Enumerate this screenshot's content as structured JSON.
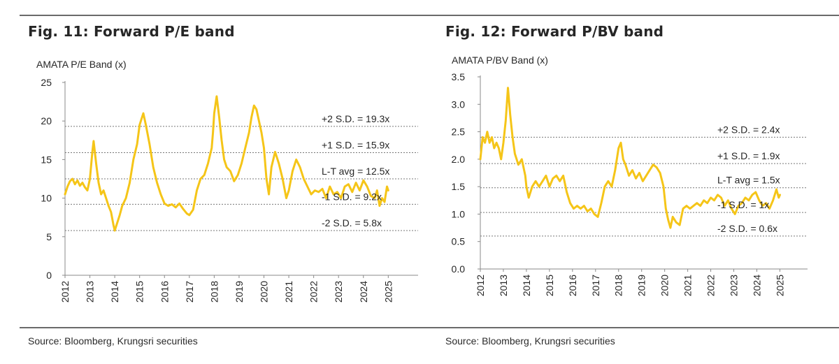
{
  "figures": [
    {
      "title": "Fig. 11: Forward P/E band",
      "source": "Source: Bloomberg, Krungsri securities",
      "chart_data": {
        "type": "line",
        "title": "AMATA P/E  Band (x)",
        "ylim": [
          0,
          25
        ],
        "yticks": [
          "0",
          "5",
          "10",
          "15",
          "20",
          "25"
        ],
        "xlim": [
          2012,
          2026.2
        ],
        "xticks": [
          "2012",
          "2013",
          "2014",
          "2015",
          "2016",
          "2017",
          "2018",
          "2019",
          "2020",
          "2021",
          "2022",
          "2023",
          "2024",
          "2025"
        ],
        "color": "#f5c518",
        "series": [
          {
            "name": "AMATA forward P/E",
            "x": [
              2012.0,
              2012.1,
              2012.2,
              2012.3,
              2012.4,
              2012.5,
              2012.6,
              2012.7,
              2012.8,
              2012.9,
              2013.0,
              2013.05,
              2013.1,
              2013.15,
              2013.25,
              2013.35,
              2013.45,
              2013.55,
              2013.65,
              2013.75,
              2013.85,
              2013.95,
              2014.0,
              2014.1,
              2014.2,
              2014.3,
              2014.45,
              2014.6,
              2014.75,
              2014.9,
              2015.0,
              2015.1,
              2015.15,
              2015.25,
              2015.4,
              2015.55,
              2015.7,
              2015.85,
              2016.0,
              2016.15,
              2016.3,
              2016.45,
              2016.6,
              2016.75,
              2016.9,
              2017.0,
              2017.15,
              2017.3,
              2017.45,
              2017.6,
              2017.75,
              2017.9,
              2017.95,
              2018.0,
              2018.1,
              2018.2,
              2018.3,
              2018.4,
              2018.5,
              2018.65,
              2018.8,
              2018.95,
              2019.1,
              2019.25,
              2019.4,
              2019.5,
              2019.6,
              2019.7,
              2019.8,
              2019.9,
              2020.0,
              2020.1,
              2020.2,
              2020.3,
              2020.45,
              2020.6,
              2020.75,
              2020.9,
              2021.0,
              2021.15,
              2021.3,
              2021.45,
              2021.6,
              2021.75,
              2021.9,
              2022.05,
              2022.2,
              2022.35,
              2022.5,
              2022.65,
              2022.8,
              2022.95,
              2023.1,
              2023.25,
              2023.4,
              2023.55,
              2023.7,
              2023.85,
              2024.0,
              2024.15,
              2024.3,
              2024.45,
              2024.55,
              2024.65,
              2024.75,
              2024.85,
              2024.95,
              2025.0
            ],
            "values": [
              10.5,
              11.5,
              12.2,
              12.5,
              11.8,
              12.3,
              11.6,
              12.0,
              11.4,
              11.0,
              12.5,
              14.2,
              16.0,
              17.4,
              14.5,
              12.0,
              10.5,
              11.0,
              10.0,
              9.0,
              8.2,
              6.5,
              5.8,
              6.8,
              7.8,
              9.0,
              10.0,
              12.0,
              15.0,
              17.0,
              19.5,
              20.5,
              21.0,
              19.5,
              17.0,
              14.0,
              12.0,
              10.5,
              9.3,
              9.0,
              9.2,
              8.8,
              9.3,
              8.6,
              8.0,
              7.8,
              8.5,
              11.0,
              12.5,
              13.0,
              14.5,
              16.5,
              18.5,
              21.0,
              23.2,
              20.5,
              17.5,
              15.0,
              14.0,
              13.5,
              12.2,
              13.0,
              14.5,
              16.5,
              18.5,
              20.5,
              22.0,
              21.5,
              20.0,
              18.5,
              16.5,
              12.5,
              10.5,
              14.0,
              16.0,
              14.5,
              12.5,
              10.0,
              11.0,
              13.5,
              15.0,
              14.0,
              12.5,
              11.5,
              10.5,
              11.0,
              10.8,
              11.2,
              10.0,
              11.5,
              10.5,
              10.8,
              10.0,
              11.5,
              11.8,
              10.8,
              12.0,
              11.0,
              12.3,
              11.5,
              10.3,
              10.0,
              11.0,
              9.0,
              10.0,
              9.5,
              11.5,
              11.0
            ]
          }
        ],
        "bands": [
          {
            "label": "+2 S.D. = 19.3x",
            "value": 19.3
          },
          {
            "label": "+1 S.D.  = 15.9x",
            "value": 15.9
          },
          {
            "label": "L-T avg = 12.5x",
            "value": 12.5
          },
          {
            "label": "-1 S.D.  = 9.2x",
            "value": 9.2
          },
          {
            "label": "-2 S.D.  = 5.8x",
            "value": 5.8
          }
        ]
      }
    },
    {
      "title": "Fig. 12: Forward P/BV band",
      "source": "Source: Bloomberg, Krungsri securities",
      "chart_data": {
        "type": "line",
        "title": "AMATA P/BV Band (x)",
        "ylim": [
          0,
          3.5
        ],
        "yticks": [
          "0.0",
          "0.5",
          "1.0",
          "1.5",
          "2.0",
          "2.5",
          "3.0",
          "3.5"
        ],
        "xlim": [
          2012,
          2026.2
        ],
        "xticks": [
          "2012",
          "2013",
          "2014",
          "2015",
          "2016",
          "2017",
          "2018",
          "2019",
          "2020",
          "2021",
          "2022",
          "2023",
          "2024",
          "2025"
        ],
        "color": "#f5c518",
        "series": [
          {
            "name": "AMATA forward P/BV",
            "x": [
              2012.0,
              2012.1,
              2012.2,
              2012.3,
              2012.4,
              2012.5,
              2012.6,
              2012.7,
              2012.8,
              2012.9,
              2013.0,
              2013.1,
              2013.2,
              2013.3,
              2013.4,
              2013.5,
              2013.65,
              2013.8,
              2013.95,
              2014.0,
              2014.1,
              2014.25,
              2014.4,
              2014.55,
              2014.7,
              2014.85,
              2015.0,
              2015.15,
              2015.3,
              2015.45,
              2015.6,
              2015.75,
              2015.9,
              2016.05,
              2016.2,
              2016.35,
              2016.5,
              2016.65,
              2016.8,
              2016.95,
              2017.1,
              2017.25,
              2017.4,
              2017.55,
              2017.7,
              2017.85,
              2018.0,
              2018.1,
              2018.2,
              2018.3,
              2018.45,
              2018.6,
              2018.75,
              2018.9,
              2019.05,
              2019.2,
              2019.35,
              2019.5,
              2019.65,
              2019.8,
              2019.95,
              2020.05,
              2020.15,
              2020.25,
              2020.35,
              2020.5,
              2020.65,
              2020.8,
              2020.95,
              2021.1,
              2021.25,
              2021.4,
              2021.55,
              2021.7,
              2021.85,
              2022.0,
              2022.15,
              2022.3,
              2022.45,
              2022.6,
              2022.75,
              2022.9,
              2023.05,
              2023.2,
              2023.35,
              2023.5,
              2023.65,
              2023.8,
              2023.95,
              2024.1,
              2024.25,
              2024.4,
              2024.55,
              2024.7,
              2024.85,
              2024.95,
              2025.0
            ],
            "values": [
              2.0,
              2.4,
              2.3,
              2.5,
              2.3,
              2.4,
              2.2,
              2.3,
              2.2,
              2.0,
              2.3,
              2.7,
              3.3,
              2.8,
              2.4,
              2.1,
              1.9,
              2.0,
              1.7,
              1.5,
              1.3,
              1.5,
              1.6,
              1.5,
              1.6,
              1.7,
              1.5,
              1.65,
              1.7,
              1.6,
              1.7,
              1.4,
              1.2,
              1.1,
              1.15,
              1.1,
              1.15,
              1.05,
              1.1,
              1.0,
              0.95,
              1.2,
              1.5,
              1.6,
              1.5,
              1.8,
              2.2,
              2.3,
              2.0,
              1.9,
              1.7,
              1.8,
              1.65,
              1.75,
              1.6,
              1.7,
              1.8,
              1.9,
              1.85,
              1.75,
              1.5,
              1.1,
              0.9,
              0.75,
              0.95,
              0.85,
              0.8,
              1.1,
              1.15,
              1.1,
              1.15,
              1.2,
              1.15,
              1.25,
              1.2,
              1.3,
              1.25,
              1.35,
              1.3,
              1.15,
              1.25,
              1.1,
              1.0,
              1.15,
              1.2,
              1.3,
              1.25,
              1.35,
              1.4,
              1.25,
              1.15,
              1.2,
              1.1,
              1.25,
              1.45,
              1.3,
              1.35
            ]
          }
        ],
        "bands": [
          {
            "label": "+2 S.D. = 2.4x",
            "value": 2.4
          },
          {
            "label": "+1 S.D. = 1.9x",
            "value": 1.92
          },
          {
            "label": "L-T avg = 1.5x",
            "value": 1.48
          },
          {
            "label": "-1 S.D. = 1x",
            "value": 1.03
          },
          {
            "label": "-2 S.D. = 0.6x",
            "value": 0.6
          }
        ]
      }
    }
  ]
}
